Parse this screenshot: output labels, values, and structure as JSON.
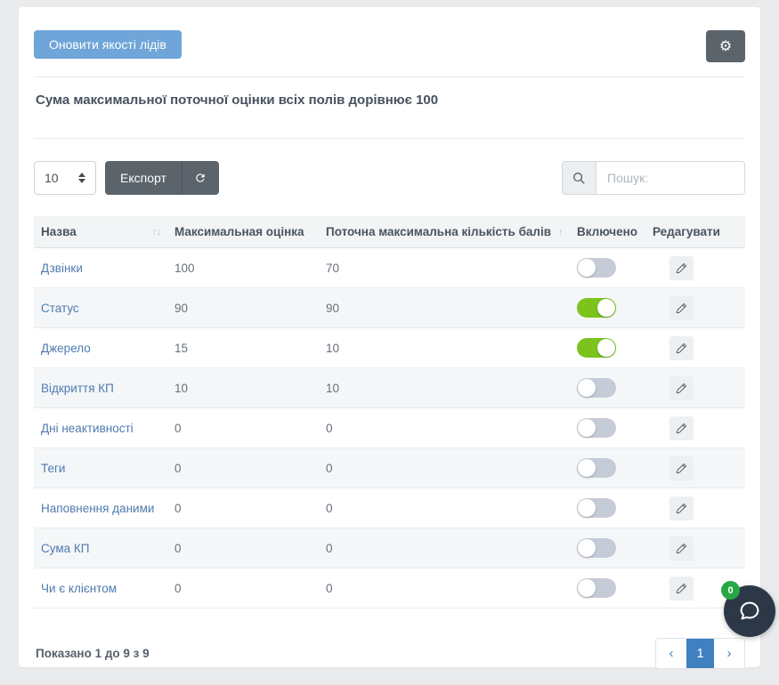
{
  "header": {
    "update_button": "Оновити якості лідів",
    "subtitle": "Сума максимальної поточної оцінки всіх полів дорівнює 100"
  },
  "toolbar": {
    "page_size": "10",
    "export_label": "Експорт",
    "search_placeholder": "Пошук:"
  },
  "icons": {
    "gear": "⚙",
    "sort_up": "↑",
    "sort_down": "↓"
  },
  "table": {
    "columns": [
      {
        "label": "Назва",
        "sortable": true
      },
      {
        "label": "Максимальная оцінка",
        "sortable": true,
        "sorted": "desc"
      },
      {
        "label": "Поточна максимальна кількість балів",
        "sortable": true
      },
      {
        "label": "Включено",
        "sortable": true
      },
      {
        "label": "Редагувати",
        "sortable": false
      }
    ],
    "rows": [
      {
        "name": "Дзвінки",
        "max_score": "100",
        "current_max": "70",
        "enabled": false
      },
      {
        "name": "Статус",
        "max_score": "90",
        "current_max": "90",
        "enabled": true
      },
      {
        "name": "Джерело",
        "max_score": "15",
        "current_max": "10",
        "enabled": true
      },
      {
        "name": "Відкриття КП",
        "max_score": "10",
        "current_max": "10",
        "enabled": false
      },
      {
        "name": "Дні неактивності",
        "max_score": "0",
        "current_max": "0",
        "enabled": false
      },
      {
        "name": "Теги",
        "max_score": "0",
        "current_max": "0",
        "enabled": false
      },
      {
        "name": "Наповнення даними",
        "max_score": "0",
        "current_max": "0",
        "enabled": false
      },
      {
        "name": "Сума КП",
        "max_score": "0",
        "current_max": "0",
        "enabled": false
      },
      {
        "name": "Чи є клієнтом",
        "max_score": "0",
        "current_max": "0",
        "enabled": false
      }
    ]
  },
  "footer": {
    "info": "Показано 1 до 9 з 9",
    "prev": "‹",
    "page": "1",
    "next": "›"
  },
  "chat": {
    "badge": "0"
  },
  "colors": {
    "accent_blue": "#6fa5d8",
    "dark_button": "#5c646b",
    "toggle_on": "#7cc31d",
    "toggle_off": "#c5ccd7",
    "link_blue": "#4e7bb0",
    "pagination_active": "#3f80c1",
    "badge_green": "#28a745",
    "chat_fab": "#2c3847"
  }
}
